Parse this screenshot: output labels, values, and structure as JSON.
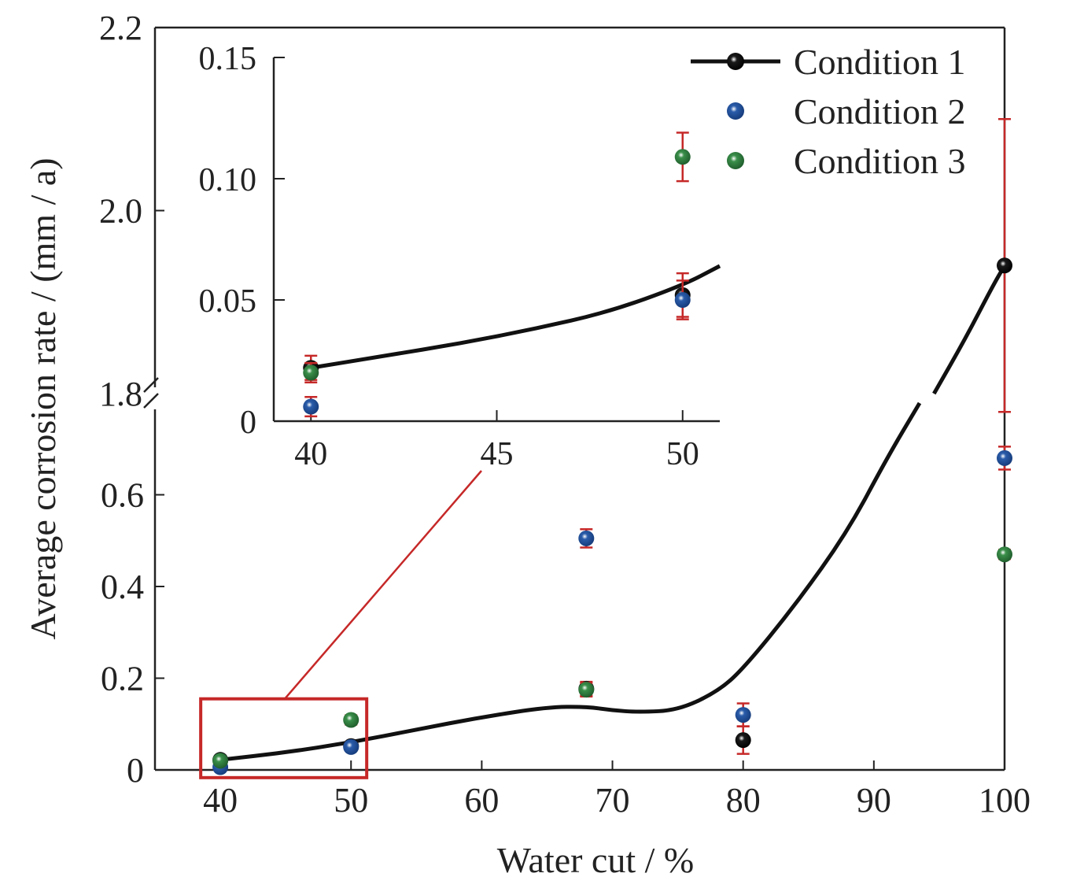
{
  "chart_data": {
    "type": "scatter",
    "xlabel": "Water cut / %",
    "ylabel": "Average corrosion rate / (mm / a)",
    "xlim": [
      35,
      100
    ],
    "xticks": [
      40,
      50,
      60,
      70,
      80,
      90,
      100
    ],
    "y_axis_break": {
      "lower_segment": [
        0,
        0.8
      ],
      "upper_segment": [
        1.8,
        2.2
      ],
      "lower_ticks": [
        0,
        0.2,
        0.4,
        0.6
      ],
      "lower_tick_labels": [
        "0",
        "0.2",
        "0.4",
        "0.6"
      ],
      "upper_ticks": [
        1.8,
        2.0,
        2.2
      ],
      "upper_tick_labels": [
        "1.8",
        "2.0",
        "2.2"
      ]
    },
    "xtick_labels": [
      "40",
      "50",
      "60",
      "70",
      "80",
      "90",
      "100"
    ],
    "legend": {
      "position": "top-right"
    },
    "colors": {
      "condition1": "#1a1a1a",
      "condition2": "#2a5caa",
      "condition3": "#3a8f4a",
      "error_bar": "#c62828",
      "zoom_box": "#c62828",
      "fit_line": "#111111"
    },
    "series": [
      {
        "name": "Condition 1",
        "x": [
          40,
          50,
          68,
          80,
          100
        ],
        "y": [
          0.022,
          0.052,
          0.177,
          0.065,
          1.94
        ],
        "yerr": [
          0.005,
          0.009,
          0.015,
          0.03,
          0.16
        ],
        "fit_line": true
      },
      {
        "name": "Condition 2",
        "x": [
          40,
          50,
          68,
          80,
          100
        ],
        "y": [
          0.006,
          0.05,
          0.505,
          0.12,
          0.68
        ],
        "yerr": [
          0.004,
          0.008,
          0.02,
          0.025,
          0.025
        ]
      },
      {
        "name": "Condition 3",
        "x": [
          40,
          50,
          68,
          100
        ],
        "y": [
          0.02,
          0.109,
          0.175,
          0.47
        ],
        "yerr": [
          0.004,
          0.01,
          0.015,
          0.01
        ]
      }
    ],
    "fit_curve_points": [
      [
        40,
        0.022
      ],
      [
        45,
        0.038
      ],
      [
        50,
        0.06
      ],
      [
        55,
        0.088
      ],
      [
        60,
        0.115
      ],
      [
        65,
        0.137
      ],
      [
        68,
        0.138
      ],
      [
        70,
        0.13
      ],
      [
        72,
        0.126
      ],
      [
        75,
        0.13
      ],
      [
        78,
        0.17
      ],
      [
        80,
        0.22
      ],
      [
        84,
        0.36
      ],
      [
        88,
        0.52
      ],
      [
        91,
        0.68
      ],
      [
        93.5,
        0.8
      ],
      [
        94.6,
        1.8
      ],
      [
        97,
        1.86
      ],
      [
        99,
        1.915
      ],
      [
        100,
        1.94
      ]
    ],
    "inset": {
      "xlim": [
        39,
        51
      ],
      "ylim": [
        0,
        0.15
      ],
      "xticks": [
        40,
        45,
        50
      ],
      "xtick_labels": [
        "40",
        "45",
        "50"
      ],
      "yticks": [
        0,
        0.05,
        0.1,
        0.15
      ],
      "ytick_labels": [
        "0",
        "0.05",
        "0.10",
        "0.15"
      ],
      "zoom_region": {
        "x": [
          38.5,
          51.2
        ],
        "y": [
          -0.01,
          0.155
        ]
      },
      "fit_curve_points": [
        [
          40,
          0.022
        ],
        [
          42,
          0.027
        ],
        [
          44,
          0.032
        ],
        [
          46,
          0.038
        ],
        [
          48,
          0.045
        ],
        [
          50,
          0.056
        ],
        [
          51,
          0.064
        ]
      ]
    }
  }
}
